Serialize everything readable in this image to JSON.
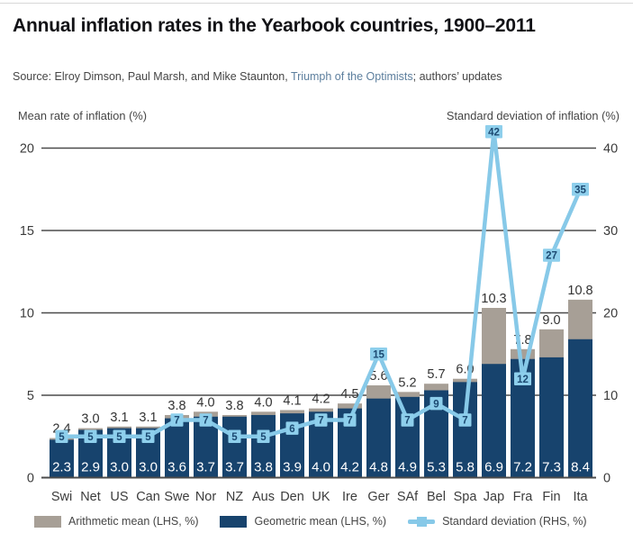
{
  "header": {
    "title": "Annual inflation rates in the Yearbook countries, 1900–2011",
    "source_prefix": "Source: Elroy Dimson, Paul Marsh, and Mike Staunton, ",
    "source_link": "Triumph of the Optimists",
    "source_suffix": "; authors’ updates"
  },
  "colors": {
    "navy": "#17436d",
    "gray": "#a79f96",
    "light_blue": "#87c9e8",
    "badge_fill": "#8ecfec",
    "badge_text": "#1c4a72",
    "grid": "#4b4b4b",
    "tick_text": "#3c3c3c",
    "bar_label": "#333333",
    "bar_inner_label": "#ffffff",
    "source_link": "#5d7f9e"
  },
  "legend": [
    {
      "label": "Arithmetic mean (LHS, %)",
      "type": "bar",
      "color": "#a79f96"
    },
    {
      "label": "Geometric mean (LHS, %)",
      "type": "bar",
      "color": "#17436d"
    },
    {
      "label": "Standard deviation (RHS, %)",
      "type": "line",
      "color": "#87c9e8"
    }
  ],
  "chart_data": {
    "type": "bar",
    "title": "Annual inflation rates in the Yearbook countries, 1900–2011",
    "categories": [
      "Swi",
      "Net",
      "US",
      "Can",
      "Swe",
      "Nor",
      "NZ",
      "Aus",
      "Den",
      "UK",
      "Ire",
      "Ger",
      "SAf",
      "Bel",
      "Spa",
      "Jap",
      "Fra",
      "Fin",
      "Ita"
    ],
    "series": [
      {
        "name": "Arithmetic mean (LHS, %)",
        "type": "bar",
        "axis": "left",
        "color": "#a79f96",
        "values": [
          2.4,
          3.0,
          3.1,
          3.1,
          3.8,
          4.0,
          3.8,
          4.0,
          4.1,
          4.2,
          4.5,
          5.6,
          5.2,
          5.7,
          6.0,
          10.3,
          7.8,
          9.0,
          10.8
        ]
      },
      {
        "name": "Geometric mean (LHS, %)",
        "type": "bar",
        "axis": "left",
        "color": "#17436d",
        "values": [
          2.3,
          2.9,
          3.0,
          3.0,
          3.6,
          3.7,
          3.7,
          3.8,
          3.9,
          4.0,
          4.2,
          4.8,
          4.9,
          5.3,
          5.8,
          6.9,
          7.2,
          7.3,
          8.4
        ]
      },
      {
        "name": "Standard deviation (RHS, %)",
        "type": "line",
        "axis": "right",
        "color": "#87c9e8",
        "values": [
          5,
          5,
          5,
          5,
          7,
          7,
          5,
          5,
          6,
          7,
          7,
          15,
          7,
          9,
          7,
          42,
          12,
          27,
          35
        ]
      }
    ],
    "left_axis": {
      "label": "Mean rate of inflation (%)",
      "range": [
        0,
        20
      ],
      "ticks": [
        0,
        5,
        10,
        15,
        20
      ]
    },
    "right_axis": {
      "label": "Standard deviation of inflation (%)",
      "range": [
        0,
        40
      ],
      "ticks": [
        0,
        10,
        20,
        30,
        40
      ]
    },
    "grid": true,
    "legend_position": "bottom"
  }
}
